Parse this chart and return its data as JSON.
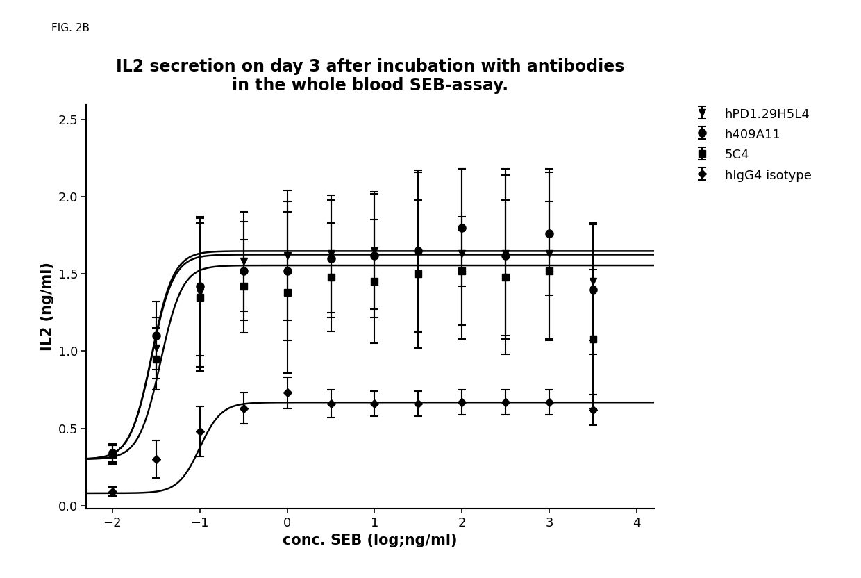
{
  "title_line1": "IL2 secretion on day 3 after incubation with antibodies",
  "title_line2": "in the whole blood SEB-assay.",
  "xlabel": "conc. SEB (log;ng/ml)",
  "ylabel": "IL2 (ng/ml)",
  "fig_label": "FIG. 2B",
  "xlim": [
    -2.3,
    4.2
  ],
  "ylim": [
    -0.02,
    2.6
  ],
  "xticks": [
    -2,
    -1,
    0,
    1,
    2,
    3,
    4
  ],
  "yticks": [
    0.0,
    0.5,
    1.0,
    1.5,
    2.0,
    2.5
  ],
  "series": [
    {
      "name": "hPD1.29H5L4",
      "marker": "v",
      "color": "#000000",
      "ec50_log": -1.55,
      "bottom": 0.3,
      "top": 1.625,
      "hill": 3.5,
      "data_x": [
        -2.0,
        -1.5,
        -1.0,
        -0.5,
        0.0,
        0.5,
        1.0,
        1.5,
        2.0,
        2.5,
        3.0,
        3.5
      ],
      "data_y": [
        0.33,
        1.02,
        1.38,
        1.58,
        1.62,
        1.63,
        1.65,
        1.64,
        1.63,
        1.63,
        1.63,
        1.45
      ],
      "err_y": [
        0.06,
        0.2,
        0.48,
        0.32,
        0.42,
        0.38,
        0.38,
        0.52,
        0.55,
        0.55,
        0.55,
        0.38
      ]
    },
    {
      "name": "h409A11",
      "marker": "o",
      "color": "#000000",
      "ec50_log": -1.55,
      "bottom": 0.3,
      "top": 1.648,
      "hill": 3.5,
      "data_x": [
        -2.0,
        -1.5,
        -1.0,
        -0.5,
        0.0,
        0.5,
        1.0,
        1.5,
        2.0,
        2.5,
        3.0,
        3.5
      ],
      "data_y": [
        0.34,
        1.1,
        1.42,
        1.52,
        1.52,
        1.6,
        1.62,
        1.65,
        1.8,
        1.62,
        1.76,
        1.4
      ],
      "err_y": [
        0.06,
        0.22,
        0.45,
        0.32,
        0.45,
        0.38,
        0.4,
        0.52,
        0.38,
        0.52,
        0.4,
        0.42
      ]
    },
    {
      "name": "5C4",
      "marker": "s",
      "color": "#000000",
      "ec50_log": -1.45,
      "bottom": 0.3,
      "top": 1.555,
      "hill": 3.5,
      "data_x": [
        -2.0,
        -1.5,
        -1.0,
        -0.5,
        0.0,
        0.5,
        1.0,
        1.5,
        2.0,
        2.5,
        3.0,
        3.5
      ],
      "data_y": [
        0.33,
        0.95,
        1.35,
        1.42,
        1.38,
        1.48,
        1.45,
        1.5,
        1.52,
        1.48,
        1.52,
        1.08
      ],
      "err_y": [
        0.06,
        0.2,
        0.48,
        0.3,
        0.52,
        0.35,
        0.4,
        0.48,
        0.35,
        0.5,
        0.45,
        0.45
      ]
    },
    {
      "name": "hIgG4 isotype",
      "marker": "D",
      "color": "#000000",
      "ec50_log": -1.0,
      "bottom": 0.08,
      "top": 0.668,
      "hill": 3.5,
      "data_x": [
        -2.0,
        -1.5,
        -1.0,
        -0.5,
        0.0,
        0.5,
        1.0,
        1.5,
        2.0,
        2.5,
        3.0,
        3.5
      ],
      "data_y": [
        0.09,
        0.3,
        0.48,
        0.63,
        0.73,
        0.66,
        0.66,
        0.66,
        0.67,
        0.67,
        0.67,
        0.62
      ],
      "err_y": [
        0.03,
        0.12,
        0.16,
        0.1,
        0.1,
        0.09,
        0.08,
        0.08,
        0.08,
        0.08,
        0.08,
        0.1
      ]
    }
  ],
  "background_color": "#ffffff",
  "title_fontsize": 17,
  "label_fontsize": 15,
  "tick_fontsize": 13,
  "legend_fontsize": 13,
  "fig_label_fontsize": 11
}
